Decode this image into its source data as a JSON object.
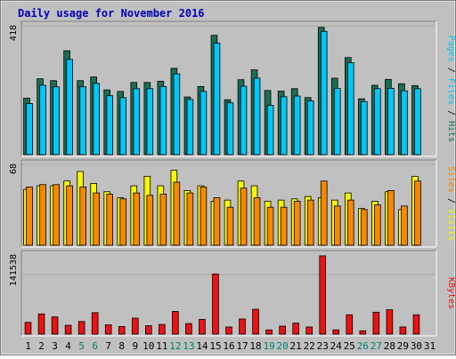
{
  "chart_data": {
    "type": "bar",
    "title": "Daily usage for November 2016",
    "colors": {
      "background": "#c0c0c0",
      "frame_dark": "#808080",
      "hits": "#1a6e55",
      "files": "#00c8f8",
      "visits": "#f8f800",
      "sites": "#f88800",
      "kbytes": "#ee1111",
      "title": "#0000bb",
      "weekend_day": "#00806e",
      "weekday_day": "#000000"
    },
    "days": [
      "1",
      "2",
      "3",
      "4",
      "5",
      "6",
      "7",
      "8",
      "9",
      "10",
      "11",
      "12",
      "13",
      "14",
      "15",
      "16",
      "17",
      "18",
      "19",
      "20",
      "21",
      "22",
      "23",
      "24",
      "25",
      "26",
      "27",
      "28",
      "29",
      "30",
      "31"
    ],
    "weekend_days": [
      5,
      6,
      12,
      13,
      19,
      20,
      26,
      27
    ],
    "panels": [
      {
        "id": "hits-files",
        "y_tick_label": "418",
        "ymax": 418,
        "side_label_parts": [
          {
            "text": "Pages",
            "color": "#00c8f8"
          },
          {
            "text": " / ",
            "color": "#000000"
          },
          {
            "text": "Files",
            "color": "#00c8f8"
          },
          {
            "text": " / ",
            "color": "#000000"
          },
          {
            "text": "Hits",
            "color": "#1a6e55"
          }
        ],
        "series": [
          {
            "name": "Hits",
            "color": "#1a6e55",
            "values": [
              183,
              246,
              240,
              337,
              240,
              252,
              210,
              205,
              234,
              234,
              238,
              280,
              187,
              221,
              387,
              178,
              243,
              275,
              208,
              206,
              214,
              185,
              413,
              248,
              315,
              181,
              225,
              244,
              230,
              224,
              0
            ]
          },
          {
            "name": "Files",
            "color": "#00c8f8",
            "values": [
              166,
              225,
              220,
              309,
              220,
              231,
              191,
              185,
              214,
              214,
              221,
              262,
              179,
              205,
              362,
              168,
              222,
              248,
              160,
              188,
              190,
              174,
              400,
              215,
              298,
              172,
              214,
              215,
              207,
              214,
              0
            ]
          }
        ]
      },
      {
        "id": "visits-sites",
        "y_tick_label": "68",
        "ymax": 68,
        "side_label_parts": [
          {
            "text": "Sites",
            "color": "#f88800"
          },
          {
            "text": " / ",
            "color": "#000000"
          },
          {
            "text": "Visits",
            "color": "#f8f800"
          }
        ],
        "series": [
          {
            "name": "Visits",
            "color": "#f8f800",
            "values": [
              47,
              50,
              50,
              54,
              62,
              52,
              45,
              40,
              50,
              58,
              50,
              63,
              46,
              50,
              37,
              38,
              54,
              50,
              37,
              38,
              39,
              41,
              40,
              38,
              44,
              31,
              37,
              45,
              30,
              58,
              0
            ]
          },
          {
            "name": "Sites",
            "color": "#f88800",
            "values": [
              49,
              51,
              51,
              50,
              49,
              44,
              43,
              39,
              44,
              42,
              43,
              53,
              44,
              49,
              40,
              32,
              48,
              40,
              32,
              32,
              37,
              38,
              54,
              33,
              38,
              30,
              34,
              46,
              33,
              54,
              0
            ]
          }
        ]
      },
      {
        "id": "kbytes",
        "y_tick_label": "141538",
        "ymax": 188000,
        "side_label_parts": [
          {
            "text": "KBytes",
            "color": "#ee1111"
          }
        ],
        "series": [
          {
            "name": "KBytes",
            "color": "#ee1111",
            "values": [
              28000,
              48000,
              41000,
              21000,
              30000,
              51000,
              22000,
              18000,
              38000,
              20000,
              23000,
              54000,
              25000,
              35000,
              143000,
              17000,
              36000,
              59000,
              10000,
              19000,
              26000,
              17000,
              186000,
              10000,
              46000,
              8000,
              52000,
              58000,
              17000,
              46000,
              0
            ]
          }
        ]
      }
    ]
  }
}
